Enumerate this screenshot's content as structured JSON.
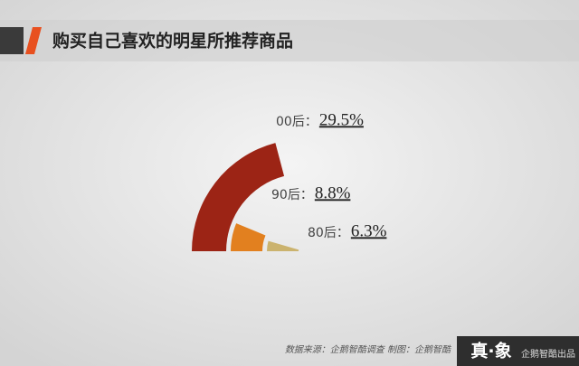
{
  "chart_data": {
    "type": "radial-bar",
    "title": "购买自己喜欢的明星所推荐商品",
    "categories": [
      "00后：",
      "90后：",
      "80后："
    ],
    "values": [
      29.5,
      8.8,
      6.3
    ],
    "value_labels": [
      "29.5%",
      "8.8%",
      "6.3%"
    ],
    "colors": [
      "#9c2415",
      "#e2801f",
      "#cbb36e"
    ],
    "source": "数据来源：企鹅智酷调查  制图：企鹅智酷",
    "logo": "真·象",
    "logo_caption": "企鹅智酷出品"
  }
}
